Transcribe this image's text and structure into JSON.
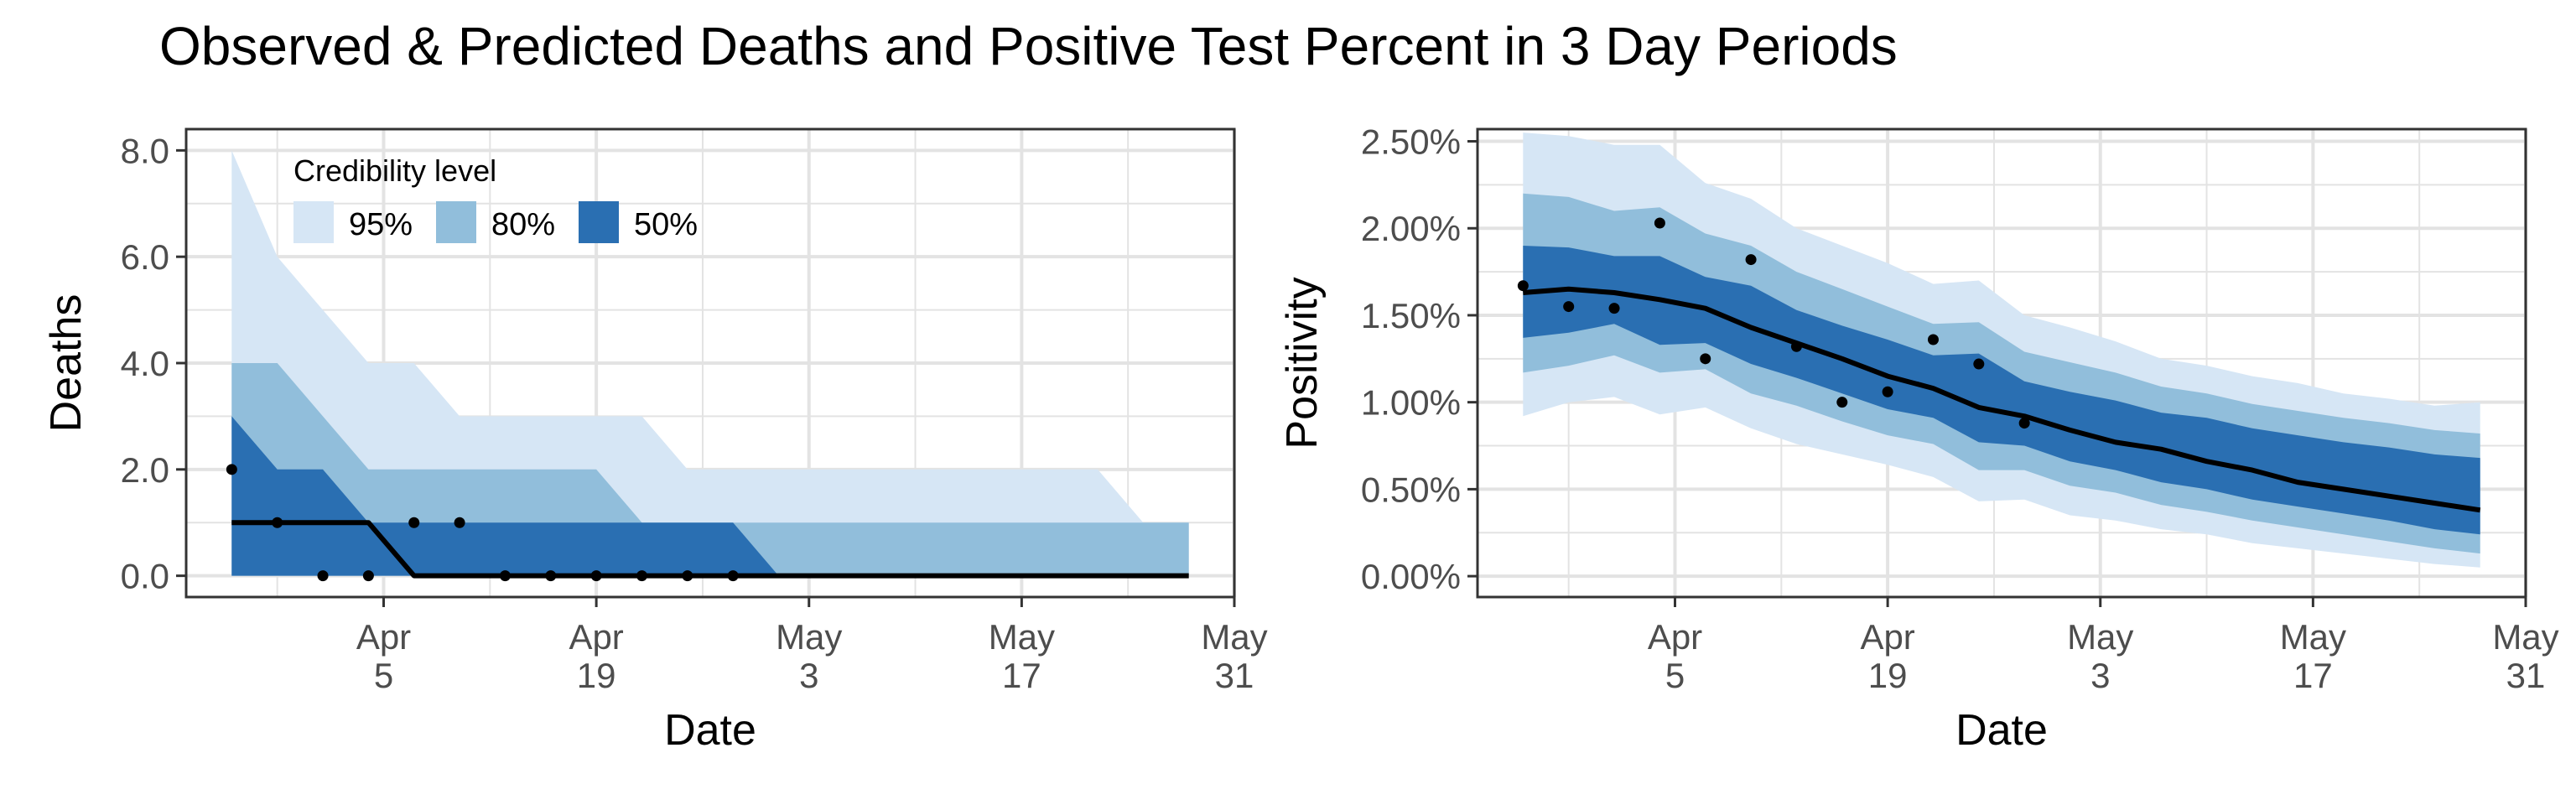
{
  "title": "Observed & Predicted Deaths and Positive Test Percent in 3 Day Periods",
  "colors": {
    "band95": "#d6e6f5",
    "band80": "#91bedb",
    "band50": "#2a6fb2",
    "median": "#000000",
    "points": "#000000",
    "grid": "#e3e3e3",
    "axis": "#333333"
  },
  "legend": {
    "title": "Credibility level",
    "placement": "top-left inside left panel",
    "items": [
      {
        "label": "95%",
        "color": "#d6e6f5"
      },
      {
        "label": "80%",
        "color": "#91bedb"
      },
      {
        "label": "50%",
        "color": "#2a6fb2"
      }
    ]
  },
  "chart_data": [
    {
      "type": "area",
      "title": "",
      "xlabel": "Date",
      "ylabel": "Deaths",
      "xlim": [
        "2020-03-23",
        "2020-05-31"
      ],
      "ylim": [
        -0.4,
        8.4
      ],
      "x_ticks": [
        {
          "date": "2020-04-05",
          "line1": "Apr",
          "line2": "5"
        },
        {
          "date": "2020-04-19",
          "line1": "Apr",
          "line2": "19"
        },
        {
          "date": "2020-05-03",
          "line1": "May",
          "line2": "3"
        },
        {
          "date": "2020-05-17",
          "line1": "May",
          "line2": "17"
        },
        {
          "date": "2020-05-31",
          "line1": "May",
          "line2": "31"
        }
      ],
      "y_ticks": [
        {
          "value": 0,
          "label": "0.0"
        },
        {
          "value": 2,
          "label": "2.0"
        },
        {
          "value": 4,
          "label": "4.0"
        },
        {
          "value": 6,
          "label": "6.0"
        },
        {
          "value": 8,
          "label": "8.0"
        }
      ],
      "grid": true,
      "bands": {
        "x": [
          "2020-03-26",
          "2020-03-29",
          "2020-04-01",
          "2020-04-04",
          "2020-04-07",
          "2020-04-10",
          "2020-04-13",
          "2020-04-16",
          "2020-04-19",
          "2020-04-22",
          "2020-04-25",
          "2020-04-28",
          "2020-05-01",
          "2020-05-04",
          "2020-05-07",
          "2020-05-10",
          "2020-05-13",
          "2020-05-16",
          "2020-05-19",
          "2020-05-22",
          "2020-05-25",
          "2020-05-28"
        ],
        "lo95": [
          0,
          0,
          0,
          0,
          0,
          0,
          0,
          0,
          0,
          0,
          0,
          0,
          0,
          0,
          0,
          0,
          0,
          0,
          0,
          0,
          0,
          0
        ],
        "hi95": [
          8,
          6,
          5,
          4,
          4,
          3,
          3,
          3,
          3,
          3,
          2,
          2,
          2,
          2,
          2,
          2,
          2,
          2,
          2,
          2,
          1,
          1
        ],
        "lo80": [
          0,
          0,
          0,
          0,
          0,
          0,
          0,
          0,
          0,
          0,
          0,
          0,
          0,
          0,
          0,
          0,
          0,
          0,
          0,
          0,
          0,
          0
        ],
        "hi80": [
          4,
          4,
          3,
          2,
          2,
          2,
          2,
          2,
          2,
          1,
          1,
          1,
          1,
          1,
          1,
          1,
          1,
          1,
          1,
          1,
          1,
          1
        ],
        "lo50": [
          0,
          0,
          0,
          0,
          0,
          0,
          0,
          0,
          0,
          0,
          0,
          0,
          0,
          0,
          0,
          0,
          0,
          0,
          0,
          0,
          0,
          0
        ],
        "hi50": [
          3,
          2,
          2,
          1,
          1,
          1,
          1,
          1,
          1,
          1,
          1,
          1,
          0,
          0,
          0,
          0,
          0,
          0,
          0,
          0,
          0,
          0
        ],
        "median": [
          1,
          1,
          1,
          1,
          0,
          0,
          0,
          0,
          0,
          0,
          0,
          0,
          0,
          0,
          0,
          0,
          0,
          0,
          0,
          0,
          0,
          0
        ]
      },
      "observed": {
        "x": [
          "2020-03-26",
          "2020-03-29",
          "2020-04-01",
          "2020-04-04",
          "2020-04-07",
          "2020-04-10",
          "2020-04-13",
          "2020-04-16",
          "2020-04-19",
          "2020-04-22",
          "2020-04-25",
          "2020-04-28"
        ],
        "y": [
          2,
          1,
          0,
          0,
          1,
          1,
          0,
          0,
          0,
          0,
          0,
          0
        ]
      }
    },
    {
      "type": "area",
      "title": "",
      "xlabel": "Date",
      "ylabel": "Positivity",
      "xlim": [
        "2020-03-23",
        "2020-05-31"
      ],
      "ylim": [
        -0.0012,
        0.0257
      ],
      "x_ticks": [
        {
          "date": "2020-04-05",
          "line1": "Apr",
          "line2": "5"
        },
        {
          "date": "2020-04-19",
          "line1": "Apr",
          "line2": "19"
        },
        {
          "date": "2020-05-03",
          "line1": "May",
          "line2": "3"
        },
        {
          "date": "2020-05-17",
          "line1": "May",
          "line2": "17"
        },
        {
          "date": "2020-05-31",
          "line1": "May",
          "line2": "31"
        }
      ],
      "y_ticks": [
        {
          "value": 0.0,
          "label": "0.00%"
        },
        {
          "value": 0.005,
          "label": "0.50%"
        },
        {
          "value": 0.01,
          "label": "1.00%"
        },
        {
          "value": 0.015,
          "label": "1.50%"
        },
        {
          "value": 0.02,
          "label": "2.00%"
        },
        {
          "value": 0.025,
          "label": "2.50%"
        }
      ],
      "grid": true,
      "bands": {
        "x": [
          "2020-03-26",
          "2020-03-29",
          "2020-04-01",
          "2020-04-04",
          "2020-04-07",
          "2020-04-10",
          "2020-04-13",
          "2020-04-16",
          "2020-04-19",
          "2020-04-22",
          "2020-04-25",
          "2020-04-28",
          "2020-05-01",
          "2020-05-04",
          "2020-05-07",
          "2020-05-10",
          "2020-05-13",
          "2020-05-16",
          "2020-05-19",
          "2020-05-22",
          "2020-05-25",
          "2020-05-28"
        ],
        "lo95": [
          0.0092,
          0.01,
          0.0103,
          0.0093,
          0.0097,
          0.0085,
          0.0076,
          0.007,
          0.0064,
          0.0057,
          0.0043,
          0.0044,
          0.0035,
          0.0032,
          0.0027,
          0.0024,
          0.0019,
          0.0016,
          0.0013,
          0.001,
          0.0007,
          0.0005
        ],
        "hi95": [
          0.0255,
          0.0253,
          0.0248,
          0.0248,
          0.0226,
          0.0217,
          0.02,
          0.019,
          0.018,
          0.0168,
          0.017,
          0.015,
          0.0143,
          0.0135,
          0.0125,
          0.0121,
          0.0115,
          0.0111,
          0.0105,
          0.0102,
          0.0098,
          0.01
        ],
        "lo80": [
          0.0117,
          0.0121,
          0.0127,
          0.0117,
          0.0119,
          0.0105,
          0.0098,
          0.0089,
          0.0081,
          0.0076,
          0.0061,
          0.0061,
          0.0052,
          0.0048,
          0.0041,
          0.0037,
          0.0032,
          0.0028,
          0.0024,
          0.002,
          0.0016,
          0.0013
        ],
        "hi80": [
          0.022,
          0.0218,
          0.021,
          0.0212,
          0.0197,
          0.019,
          0.0175,
          0.0165,
          0.0155,
          0.0145,
          0.0146,
          0.0129,
          0.0123,
          0.0117,
          0.0109,
          0.0105,
          0.0099,
          0.0095,
          0.0091,
          0.0088,
          0.0084,
          0.0082
        ],
        "lo50": [
          0.0137,
          0.014,
          0.0145,
          0.0133,
          0.0134,
          0.0122,
          0.0114,
          0.0105,
          0.0096,
          0.0091,
          0.0077,
          0.0075,
          0.0066,
          0.0061,
          0.0054,
          0.005,
          0.0044,
          0.004,
          0.0036,
          0.0032,
          0.0027,
          0.0024
        ],
        "hi50": [
          0.019,
          0.0189,
          0.0184,
          0.0184,
          0.0172,
          0.0167,
          0.0153,
          0.0144,
          0.0136,
          0.0127,
          0.0128,
          0.0112,
          0.0106,
          0.0101,
          0.0094,
          0.0091,
          0.0085,
          0.0081,
          0.0077,
          0.0074,
          0.007,
          0.0068
        ],
        "median": [
          0.0163,
          0.0165,
          0.0163,
          0.0159,
          0.0154,
          0.0143,
          0.0134,
          0.0125,
          0.0115,
          0.0108,
          0.0097,
          0.0092,
          0.0084,
          0.0077,
          0.0073,
          0.0066,
          0.0061,
          0.0054,
          0.005,
          0.0046,
          0.0042,
          0.0038
        ]
      },
      "observed": {
        "x": [
          "2020-03-26",
          "2020-03-29",
          "2020-04-01",
          "2020-04-04",
          "2020-04-07",
          "2020-04-10",
          "2020-04-13",
          "2020-04-16",
          "2020-04-19",
          "2020-04-22",
          "2020-04-25",
          "2020-04-28"
        ],
        "y": [
          0.0167,
          0.0155,
          0.0154,
          0.0203,
          0.0125,
          0.0182,
          0.0132,
          0.01,
          0.0106,
          0.0136,
          0.0122,
          0.0088
        ]
      }
    }
  ]
}
